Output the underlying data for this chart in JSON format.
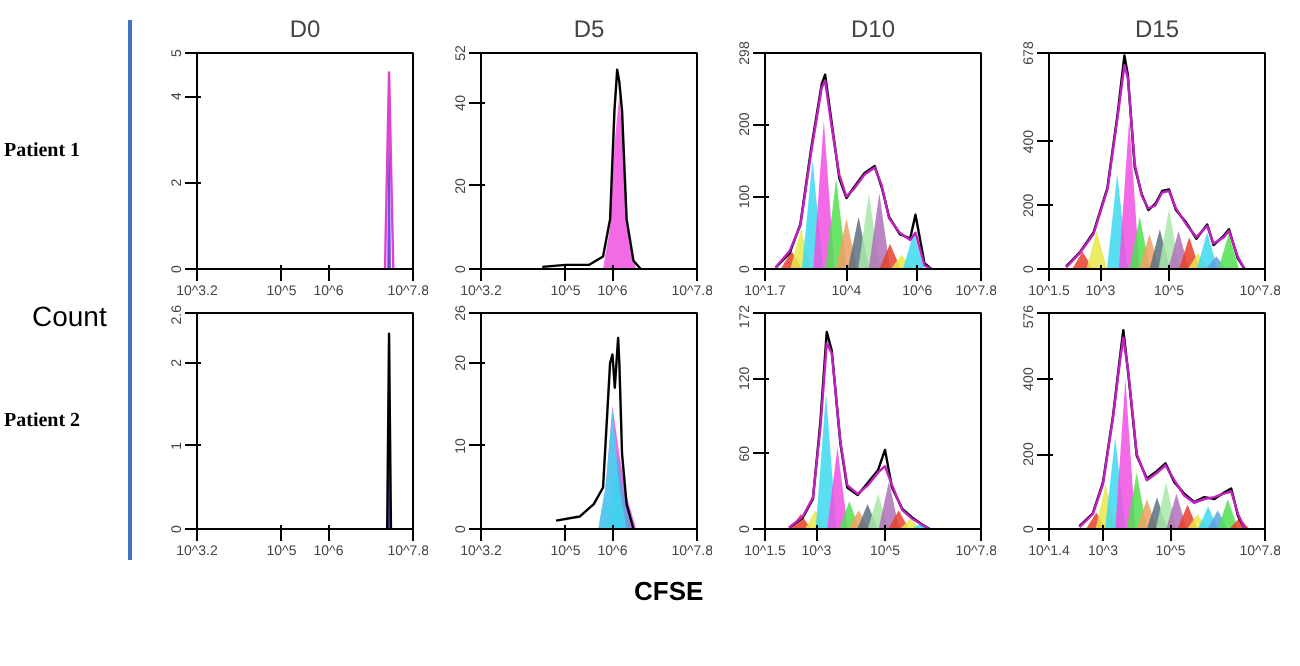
{
  "chart_data": [
    {
      "type": "line",
      "title": "D0",
      "annotations": [
        "Patient 1"
      ],
      "log": "x",
      "grid": false,
      "xlim": [
        1585,
        63100000.0
      ],
      "xticks": [
        {
          "value": 1585,
          "label": "10^3.2"
        },
        {
          "value": 100000.0,
          "label": "10^5"
        },
        {
          "value": 1000000.0,
          "label": "10^6"
        },
        {
          "value": 63100000.0,
          "label": "10^7.8"
        }
      ],
      "ylim": [
        0,
        5
      ],
      "yticks": [
        0,
        2,
        4,
        5
      ],
      "series": [
        {
          "type": "area",
          "color": "#5030e0",
          "x": [
            17800000.0,
            19500000.0,
            21400000.0
          ],
          "values": [
            0,
            4.55,
            0
          ]
        },
        {
          "type": "line",
          "color": "#e040d0",
          "x": [
            16000000.0,
            19500000.0,
            24000000.0
          ],
          "values": [
            0,
            4.55,
            0
          ]
        }
      ]
    },
    {
      "type": "line",
      "title": "D5",
      "log": "x",
      "grid": false,
      "xlim": [
        1585,
        63100000.0
      ],
      "xticks": [
        {
          "value": 1585,
          "label": "10^3.2"
        },
        {
          "value": 100000.0,
          "label": "10^5"
        },
        {
          "value": 1000000.0,
          "label": "10^6"
        },
        {
          "value": 63100000.0,
          "label": "10^7.8"
        }
      ],
      "ylim": [
        0,
        52
      ],
      "yticks": [
        0,
        20,
        40,
        52
      ],
      "series": [
        {
          "type": "area",
          "color": "#f050e0",
          "x": [
            630000.0,
            890000.0,
            1100000.0,
            1400000.0,
            1800000.0,
            2200000.0,
            3200000.0
          ],
          "values": [
            0,
            10,
            30,
            42,
            25,
            8,
            0
          ]
        },
        {
          "type": "line",
          "color": "#000000",
          "x": [
            32000.0,
            100000.0,
            320000.0,
            630000.0,
            890000.0,
            1100000.0,
            1260000.0,
            1400000.0,
            1600000.0,
            2000000.0,
            2800000.0,
            4000000.0
          ],
          "values": [
            0.5,
            1,
            1,
            3,
            12,
            38,
            48,
            45,
            38,
            12,
            2,
            0
          ]
        }
      ]
    },
    {
      "type": "line",
      "title": "D10",
      "log": "x",
      "grid": false,
      "xlim": [
        50.1,
        63100000.0
      ],
      "xticks": [
        {
          "value": 50.1,
          "label": "10^1.7"
        },
        {
          "value": 10000.0,
          "label": "10^4"
        },
        {
          "value": 1000000.0,
          "label": "10^6"
        },
        {
          "value": 63100000.0,
          "label": "10^7.8"
        }
      ],
      "ylim": [
        0,
        298
      ],
      "yticks": [
        0,
        100,
        200,
        298
      ],
      "series": [
        {
          "type": "area",
          "color": "#e8402a",
          "x": [
            140,
            280,
            560
          ],
          "values": [
            0,
            25,
            0
          ]
        },
        {
          "type": "area",
          "color": "#e8e84a",
          "x": [
            260,
            520,
            1040
          ],
          "values": [
            0,
            55,
            0
          ]
        },
        {
          "type": "area",
          "color": "#3cd8f0",
          "x": [
            550,
            1100,
            2200
          ],
          "values": [
            0,
            150,
            0
          ]
        },
        {
          "type": "area",
          "color": "#f050e0",
          "x": [
            1150,
            2300,
            4600
          ],
          "values": [
            0,
            205,
            0
          ]
        },
        {
          "type": "area",
          "color": "#50e050",
          "x": [
            2550,
            5100,
            10200
          ],
          "values": [
            0,
            125,
            0
          ]
        },
        {
          "type": "area",
          "color": "#f0a060",
          "x": [
            5000,
            10000.0,
            20000.0
          ],
          "values": [
            0,
            70,
            0
          ]
        },
        {
          "type": "area",
          "color": "#5a7080",
          "x": [
            11000.0,
            22000.0,
            44000.0
          ],
          "values": [
            0,
            72,
            0
          ]
        },
        {
          "type": "area",
          "color": "#a8e8a8",
          "x": [
            21500.0,
            43000.0,
            86000.0
          ],
          "values": [
            0,
            105,
            0
          ]
        },
        {
          "type": "area",
          "color": "#b070b8",
          "x": [
            42500.0,
            85000.0,
            170000.0
          ],
          "values": [
            0,
            105,
            0
          ]
        },
        {
          "type": "area",
          "color": "#e8402a",
          "x": [
            85000.0,
            170000.0,
            340000.0
          ],
          "values": [
            0,
            35,
            0
          ]
        },
        {
          "type": "area",
          "color": "#e8e84a",
          "x": [
            180000.0,
            360000.0,
            720000.0
          ],
          "values": [
            0,
            20,
            0
          ]
        },
        {
          "type": "area",
          "color": "#3cd8f0",
          "x": [
            395000.0,
            790000.0,
            1580000.0
          ],
          "values": [
            0,
            50,
            0
          ]
        },
        {
          "type": "line",
          "color": "#000000",
          "x": [
            100,
            250,
            500,
            1000,
            2000,
            2500,
            4000,
            6300,
            10000.0,
            16000.0,
            32000.0,
            63000.0,
            100000.0,
            160000.0,
            320000.0,
            630000.0,
            890000.0,
            1600000.0,
            2500000.0
          ],
          "values": [
            2,
            22,
            62,
            165,
            255,
            268,
            195,
            125,
            98,
            112,
            132,
            142,
            112,
            72,
            48,
            42,
            75,
            8,
            0
          ]
        },
        {
          "type": "line",
          "color": "#c020c0",
          "x": [
            100,
            250,
            500,
            1000,
            2000,
            2500,
            4000,
            6300,
            10000.0,
            16000.0,
            32000.0,
            63000.0,
            100000.0,
            160000.0,
            320000.0,
            630000.0,
            890000.0,
            1600000.0,
            2500000.0
          ],
          "values": [
            2,
            25,
            60,
            160,
            250,
            260,
            190,
            130,
            100,
            110,
            130,
            140,
            115,
            70,
            50,
            40,
            50,
            5,
            0
          ]
        }
      ]
    },
    {
      "type": "line",
      "title": "D15",
      "log": "x",
      "grid": false,
      "xlim": [
        31.6,
        63100000.0
      ],
      "xticks": [
        {
          "value": 31.6,
          "label": "10^1.5"
        },
        {
          "value": 1000.0,
          "label": "10^3"
        },
        {
          "value": 100000.0,
          "label": "10^5"
        },
        {
          "value": 63100000.0,
          "label": "10^7.8"
        }
      ],
      "ylim": [
        0,
        678
      ],
      "yticks": [
        0,
        200,
        400,
        678
      ],
      "series": [
        {
          "type": "area",
          "color": "#e8402a",
          "x": [
            150,
            300,
            600
          ],
          "values": [
            0,
            55,
            0
          ]
        },
        {
          "type": "area",
          "color": "#e8e84a",
          "x": [
            390,
            780,
            1560
          ],
          "values": [
            0,
            120,
            0
          ]
        },
        {
          "type": "area",
          "color": "#3cd8f0",
          "x": [
            1550,
            3100,
            6200
          ],
          "values": [
            0,
            300,
            0
          ]
        },
        {
          "type": "area",
          "color": "#f050e0",
          "x": [
            3450,
            6900,
            13800
          ],
          "values": [
            0,
            470,
            0
          ]
        },
        {
          "type": "area",
          "color": "#50e050",
          "x": [
            7000,
            14000.0,
            28000.0
          ],
          "values": [
            0,
            165,
            0
          ]
        },
        {
          "type": "area",
          "color": "#f0a060",
          "x": [
            13500.0,
            27000.0,
            54000.0
          ],
          "values": [
            0,
            110,
            0
          ]
        },
        {
          "type": "area",
          "color": "#5a7080",
          "x": [
            27000.0,
            54000.0,
            108000.0
          ],
          "values": [
            0,
            125,
            0
          ]
        },
        {
          "type": "area",
          "color": "#a8e8a8",
          "x": [
            50000.0,
            100000.0,
            200000.0
          ],
          "values": [
            0,
            190,
            0
          ]
        },
        {
          "type": "area",
          "color": "#b070b8",
          "x": [
            95000.0,
            190000.0,
            380000.0
          ],
          "values": [
            0,
            120,
            0
          ]
        },
        {
          "type": "area",
          "color": "#e8402a",
          "x": [
            195000.0,
            390000.0,
            780000.0
          ],
          "values": [
            0,
            100,
            0
          ]
        },
        {
          "type": "area",
          "color": "#e8e84a",
          "x": [
            355000.0,
            710000.0,
            1420000.0
          ],
          "values": [
            0,
            50,
            0
          ]
        },
        {
          "type": "area",
          "color": "#3cd8f0",
          "x": [
            650000.0,
            1300000.0,
            2600000.0
          ],
          "values": [
            0,
            115,
            0
          ]
        },
        {
          "type": "area",
          "color": "#5fa0e0",
          "x": [
            1200000.0,
            2400000.0,
            4800000.0
          ],
          "values": [
            0,
            40,
            0
          ]
        },
        {
          "type": "area",
          "color": "#50e050",
          "x": [
            2750000.0,
            5500000.0,
            11000000.0
          ],
          "values": [
            0,
            110,
            0
          ]
        },
        {
          "type": "line",
          "color": "#000000",
          "x": [
            100,
            250,
            630,
            1600,
            3200,
            5000,
            6300,
            10000.0,
            16000.0,
            25000.0,
            40000.0,
            63000.0,
            100000.0,
            160000.0,
            320000.0,
            630000.0,
            1300000.0,
            2000000.0,
            4000000.0,
            5600000.0,
            10000000.0,
            16000000.0
          ],
          "values": [
            8,
            52,
            115,
            255,
            490,
            670,
            610,
            320,
            235,
            185,
            205,
            245,
            250,
            185,
            145,
            95,
            140,
            75,
            105,
            125,
            35,
            0
          ]
        },
        {
          "type": "line",
          "color": "#c020c0",
          "x": [
            100,
            250,
            630,
            1600,
            3200,
            5000,
            6300,
            10000.0,
            16000.0,
            25000.0,
            40000.0,
            63000.0,
            100000.0,
            160000.0,
            320000.0,
            630000.0,
            1300000.0,
            2000000.0,
            4000000.0,
            5600000.0,
            10000000.0,
            16000000.0
          ],
          "values": [
            5,
            50,
            110,
            250,
            480,
            640,
            600,
            330,
            230,
            190,
            200,
            240,
            245,
            190,
            140,
            100,
            135,
            80,
            100,
            120,
            40,
            0
          ]
        }
      ]
    },
    {
      "type": "line",
      "ylabel": "Count",
      "annotations": [
        "Patient 2"
      ],
      "log": "x",
      "grid": false,
      "xlim": [
        1585,
        63100000.0
      ],
      "xticks": [
        {
          "value": 1585,
          "label": "10^3.2"
        },
        {
          "value": 100000.0,
          "label": "10^5"
        },
        {
          "value": 1000000.0,
          "label": "10^6"
        },
        {
          "value": 63100000.0,
          "label": "10^7.8"
        }
      ],
      "ylim": [
        0,
        2.6
      ],
      "yticks": [
        0,
        1,
        2,
        2.6
      ],
      "series": [
        {
          "type": "area",
          "color": "#5030e0",
          "x": [
            17800000.0,
            19500000.0,
            21400000.0
          ],
          "values": [
            0,
            2.05,
            0
          ]
        },
        {
          "type": "line",
          "color": "#000000",
          "x": [
            17800000.0,
            19500000.0,
            21400000.0
          ],
          "values": [
            0,
            2.35,
            0
          ]
        }
      ]
    },
    {
      "type": "line",
      "log": "x",
      "grid": false,
      "xlim": [
        1585,
        63100000.0
      ],
      "xticks": [
        {
          "value": 1585,
          "label": "10^3.2"
        },
        {
          "value": 100000.0,
          "label": "10^5"
        },
        {
          "value": 1000000.0,
          "label": "10^6"
        },
        {
          "value": 63100000.0,
          "label": "10^7.8"
        }
      ],
      "xlabel": "CFSE",
      "ylim": [
        0,
        26
      ],
      "yticks": [
        0,
        10,
        20,
        26
      ],
      "series": [
        {
          "type": "area",
          "color": "#f050e0",
          "x": [
            500000.0,
            710000.0,
            1000000.0,
            1400000.0,
            2000000.0,
            3200000.0
          ],
          "values": [
            0,
            5,
            14.8,
            9,
            4,
            0
          ]
        },
        {
          "type": "area",
          "color": "#5fa0e0",
          "x": [
            790000.0,
            1260000.0,
            1800000.0,
            2500000.0
          ],
          "values": [
            0,
            9,
            4,
            0
          ]
        },
        {
          "type": "area",
          "color": "#3cd8f0",
          "x": [
            500000.0,
            710000.0,
            1000000.0,
            1400000.0,
            2000000.0
          ],
          "values": [
            0,
            5,
            14.5,
            5,
            0
          ]
        },
        {
          "type": "line",
          "color": "#000000",
          "x": [
            63000.0,
            200000.0,
            400000.0,
            630000.0,
            890000.0,
            1000000.0,
            1120000.0,
            1320000.0,
            1400000.0,
            1600000.0,
            2000000.0,
            2800000.0
          ],
          "values": [
            1,
            1.5,
            3,
            5,
            20,
            21,
            17,
            23,
            20,
            9,
            3,
            0
          ]
        }
      ]
    },
    {
      "type": "line",
      "log": "x",
      "grid": false,
      "xlim": [
        31.6,
        63100000.0
      ],
      "xticks": [
        {
          "value": 31.6,
          "label": "10^1.5"
        },
        {
          "value": 1000.0,
          "label": "10^3"
        },
        {
          "value": 100000.0,
          "label": "10^5"
        },
        {
          "value": 63100000.0,
          "label": "10^7.8"
        }
      ],
      "ylim": [
        0,
        172
      ],
      "yticks": [
        0,
        60,
        120,
        172
      ],
      "series": [
        {
          "type": "area",
          "color": "#e8402a",
          "x": [
            175,
            350,
            700
          ],
          "values": [
            0,
            12,
            0
          ]
        },
        {
          "type": "area",
          "color": "#e8e84a",
          "x": [
            465,
            930,
            1860
          ],
          "values": [
            0,
            15,
            0
          ]
        },
        {
          "type": "area",
          "color": "#3cd8f0",
          "x": [
            950,
            1900,
            3800
          ],
          "values": [
            0,
            108,
            0
          ]
        },
        {
          "type": "area",
          "color": "#f050e0",
          "x": [
            2050,
            4100,
            8200
          ],
          "values": [
            0,
            65,
            0
          ]
        },
        {
          "type": "area",
          "color": "#50e050",
          "x": [
            4550,
            9100,
            18200.0
          ],
          "values": [
            0,
            22,
            0
          ]
        },
        {
          "type": "area",
          "color": "#f0a060",
          "x": [
            8500,
            17000.0,
            34000.0
          ],
          "values": [
            0,
            15,
            0
          ]
        },
        {
          "type": "area",
          "color": "#5a7080",
          "x": [
            15500.0,
            31000.0,
            62000.0
          ],
          "values": [
            0,
            20,
            0
          ]
        },
        {
          "type": "area",
          "color": "#a8e8a8",
          "x": [
            31500.0,
            63000.0,
            126000.0
          ],
          "values": [
            0,
            28,
            0
          ]
        },
        {
          "type": "area",
          "color": "#b070b8",
          "x": [
            65000.0,
            130000.0,
            260000.0
          ],
          "values": [
            0,
            38,
            0
          ]
        },
        {
          "type": "area",
          "color": "#e8402a",
          "x": [
            125000.0,
            250000.0,
            500000.0
          ],
          "values": [
            0,
            15,
            0
          ]
        },
        {
          "type": "area",
          "color": "#e8e84a",
          "x": [
            270000.0,
            540000.0,
            1080000.0
          ],
          "values": [
            0,
            8,
            0
          ]
        },
        {
          "type": "area",
          "color": "#3cd8f0",
          "x": [
            600000.0,
            1200000.0,
            2400000.0
          ],
          "values": [
            0,
            5,
            0
          ]
        },
        {
          "type": "line",
          "color": "#000000",
          "x": [
            160,
            400,
            790,
            1300,
            2000,
            2800,
            5000,
            7900,
            16000.0,
            32000.0,
            63000.0,
            100000.0,
            160000.0,
            320000.0,
            630000.0,
            1300000.0,
            2000000.0
          ],
          "values": [
            1,
            9,
            24,
            85,
            157,
            142,
            68,
            33,
            27,
            37,
            47,
            63,
            33,
            16,
            9,
            3,
            0
          ]
        },
        {
          "type": "line",
          "color": "#c020c0",
          "x": [
            160,
            400,
            790,
            1300,
            2000,
            2800,
            5000,
            7900,
            16000.0,
            32000.0,
            63000.0,
            100000.0,
            160000.0,
            320000.0,
            630000.0,
            1300000.0,
            2000000.0
          ],
          "values": [
            1,
            10,
            25,
            80,
            148,
            140,
            70,
            35,
            28,
            35,
            45,
            50,
            35,
            15,
            8,
            3,
            0
          ]
        }
      ]
    },
    {
      "type": "line",
      "log": "x",
      "grid": false,
      "xlim": [
        25.1,
        63100000.0
      ],
      "xticks": [
        {
          "value": 25.1,
          "label": "10^1.4"
        },
        {
          "value": 1000.0,
          "label": "10^3"
        },
        {
          "value": 100000.0,
          "label": "10^5"
        },
        {
          "value": 63100000.0,
          "label": "10^7.8"
        }
      ],
      "ylim": [
        0,
        576
      ],
      "yticks": [
        0,
        200,
        400,
        576
      ],
      "series": [
        {
          "type": "area",
          "color": "#e8402a",
          "x": [
            315,
            630,
            1260
          ],
          "values": [
            0,
            44,
            0
          ]
        },
        {
          "type": "area",
          "color": "#e8e84a",
          "x": [
            600,
            1200,
            2400
          ],
          "values": [
            0,
            120,
            0
          ]
        },
        {
          "type": "area",
          "color": "#3cd8f0",
          "x": [
            1150,
            2300,
            4600
          ],
          "values": [
            0,
            245,
            0
          ]
        },
        {
          "type": "area",
          "color": "#f050e0",
          "x": [
            2300,
            4600,
            9200
          ],
          "values": [
            0,
            400,
            0
          ]
        },
        {
          "type": "area",
          "color": "#50e050",
          "x": [
            5000,
            10000.0,
            20000.0
          ],
          "values": [
            0,
            150,
            0
          ]
        },
        {
          "type": "area",
          "color": "#f0a060",
          "x": [
            10000.0,
            20000.0,
            40000.0
          ],
          "values": [
            0,
            80,
            0
          ]
        },
        {
          "type": "area",
          "color": "#5a7080",
          "x": [
            20000.0,
            40000.0,
            80000.0
          ],
          "values": [
            0,
            85,
            0
          ]
        },
        {
          "type": "area",
          "color": "#a8e8a8",
          "x": [
            37000.0,
            74000.0,
            148000.0
          ],
          "values": [
            0,
            125,
            0
          ]
        },
        {
          "type": "area",
          "color": "#b070b8",
          "x": [
            75000.0,
            150000.0,
            300000.0
          ],
          "values": [
            0,
            95,
            0
          ]
        },
        {
          "type": "area",
          "color": "#e8402a",
          "x": [
            160000.0,
            320000.0,
            640000.0
          ],
          "values": [
            0,
            65,
            0
          ]
        },
        {
          "type": "area",
          "color": "#e8e84a",
          "x": [
            315000.0,
            630000.0,
            1260000.0
          ],
          "values": [
            0,
            40,
            0
          ]
        },
        {
          "type": "area",
          "color": "#3cd8f0",
          "x": [
            650000.0,
            1300000.0,
            2600000.0
          ],
          "values": [
            0,
            60,
            0
          ]
        },
        {
          "type": "area",
          "color": "#5fa0e0",
          "x": [
            1250000.0,
            2500000.0,
            5000000.0
          ],
          "values": [
            0,
            50,
            0
          ]
        },
        {
          "type": "area",
          "color": "#50e050",
          "x": [
            2500000.0,
            5000000.0,
            10000000.0
          ],
          "values": [
            0,
            80,
            0
          ]
        },
        {
          "type": "area",
          "color": "#e8402a",
          "x": [
            5500000.0,
            11000000.0,
            22000000.0
          ],
          "values": [
            0,
            30,
            0
          ]
        },
        {
          "type": "line",
          "color": "#000000",
          "x": [
            200,
            500,
            1000,
            2000,
            3200,
            4000,
            5600,
            10000.0,
            20000.0,
            40000.0,
            71000.0,
            130000.0,
            250000.0,
            500000.0,
            1000000.0,
            2000000.0,
            4000000.0,
            6300000.0,
            10000000.0,
            16000000.0
          ],
          "values": [
            8,
            42,
            125,
            305,
            460,
            530,
            415,
            195,
            135,
            155,
            175,
            125,
            95,
            72,
            85,
            80,
            98,
            108,
            35,
            0
          ]
        },
        {
          "type": "line",
          "color": "#c020c0",
          "x": [
            200,
            500,
            1000,
            2000,
            3200,
            4000,
            5600,
            10000.0,
            20000.0,
            40000.0,
            71000.0,
            130000.0,
            250000.0,
            500000.0,
            1000000.0,
            2000000.0,
            4000000.0,
            6300000.0,
            10000000.0,
            16000000.0
          ],
          "values": [
            5,
            40,
            120,
            300,
            450,
            510,
            420,
            200,
            130,
            150,
            170,
            130,
            90,
            70,
            80,
            85,
            95,
            100,
            40,
            0
          ]
        }
      ]
    }
  ]
}
